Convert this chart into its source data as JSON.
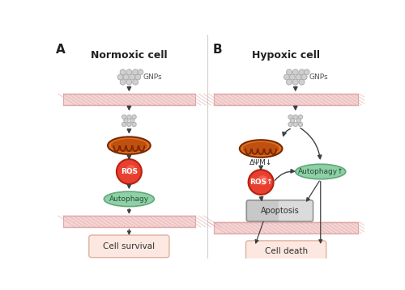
{
  "title_A": "Normoxic cell",
  "title_B": "Hypoxic cell",
  "label_A": "A",
  "label_B": "B",
  "bg_color": "#ffffff",
  "membrane_color": "#f5d5d5",
  "membrane_stripe_color": "#e0a8a8",
  "gnp_color": "#d0d0d0",
  "gnp_edge_color": "#a8a8a8",
  "mito_outer_color": "#d4600a",
  "mito_inner_color": "#b84a00",
  "mito_ridge_color": "#7a2800",
  "ros_outer_color": "#e84030",
  "ros_inner_color": "#c83020",
  "ros_text_color": "#ffffff",
  "autophagy_fill": "#90d0a8",
  "autophagy_edge": "#60a878",
  "apoptosis_fill_left": "#b8b8b8",
  "apoptosis_fill_right": "#e8e8e8",
  "apoptosis_edge": "#909090",
  "cell_box_fill": "#fce8e0",
  "cell_box_edge": "#e0b0a0",
  "arrow_color": "#404040",
  "text_color": "#303030",
  "delta_psi_text": "ΔΨM↓",
  "autophagy_up_text": "Autophagy↑"
}
